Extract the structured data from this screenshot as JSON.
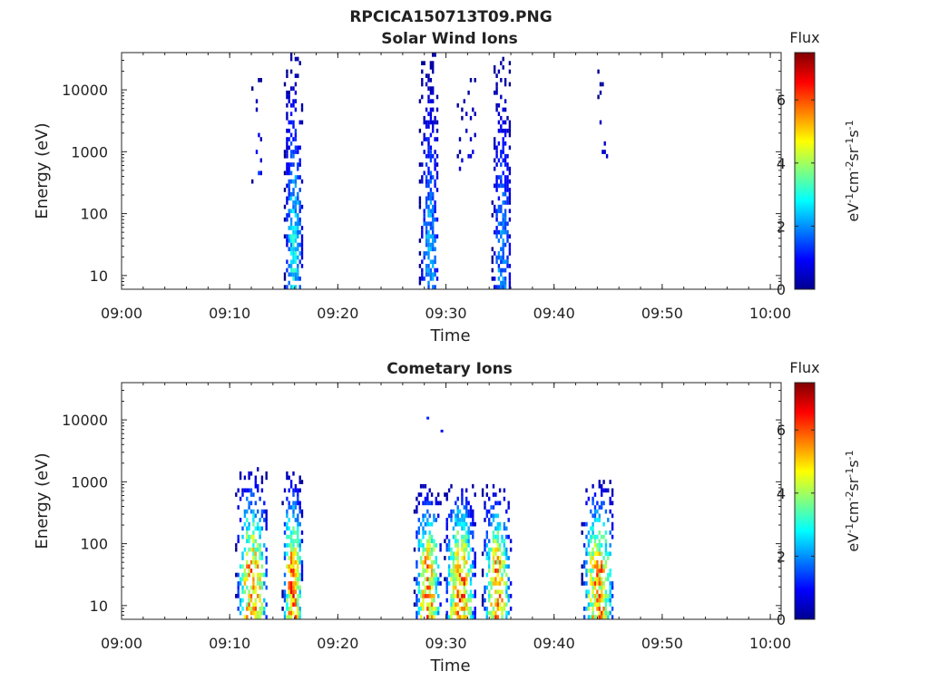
{
  "figure_title": "RPCICA150713T09.PNG",
  "chart_data": [
    {
      "type": "heatmap",
      "title": "Solar Wind Ions",
      "xlabel": "Time",
      "ylabel": "Energy (eV)",
      "xticks": [
        "09:00",
        "09:10",
        "09:20",
        "09:30",
        "09:40",
        "09:50",
        "10:00"
      ],
      "xlim": [
        "09:00",
        "10:01"
      ],
      "yscale": "log",
      "yticks": [
        10,
        100,
        1000,
        10000
      ],
      "ylim": [
        6,
        40000
      ],
      "colorbar": {
        "label": "Flux",
        "unit": "eV-1cm-2sr-1s-1",
        "ticks": [
          0,
          2,
          4,
          6
        ],
        "range": [
          0,
          7.5
        ]
      },
      "bursts": [
        {
          "start": "09:12",
          "end": "09:13",
          "emin": 280,
          "emax": 16000,
          "peak": 2.2,
          "density": 0.25
        },
        {
          "start": "09:15",
          "end": "09:16.7",
          "emin": 6,
          "emax": 36000,
          "peak": 3.3,
          "density": 0.75
        },
        {
          "start": "09:27.5",
          "end": "09:29.3",
          "emin": 6,
          "emax": 36000,
          "peak": 2.6,
          "density": 0.7
        },
        {
          "start": "09:31",
          "end": "09:33",
          "emin": 450,
          "emax": 18000,
          "peak": 2.0,
          "density": 0.2
        },
        {
          "start": "09:34.2",
          "end": "09:36",
          "emin": 6,
          "emax": 36000,
          "peak": 2.3,
          "density": 0.7
        },
        {
          "start": "09:44",
          "end": "09:45",
          "emin": 600,
          "emax": 20000,
          "peak": 1.8,
          "density": 0.3
        }
      ]
    },
    {
      "type": "heatmap",
      "title": "Cometary Ions",
      "xlabel": "Time",
      "ylabel": "Energy (eV)",
      "xticks": [
        "09:00",
        "09:10",
        "09:20",
        "09:30",
        "09:40",
        "09:50",
        "10:00"
      ],
      "xlim": [
        "09:00",
        "10:01"
      ],
      "yscale": "log",
      "yticks": [
        10,
        100,
        1000,
        10000
      ],
      "ylim": [
        6,
        40000
      ],
      "colorbar": {
        "label": "Flux",
        "unit": "eV-1cm-2sr-1s-1",
        "ticks": [
          0,
          2,
          4,
          6
        ],
        "range": [
          0,
          7.5
        ]
      },
      "bursts": [
        {
          "start": "09:10.5",
          "end": "09:13.5",
          "emin": 6,
          "emax": 1500,
          "peak": 6.6,
          "density": 0.7
        },
        {
          "start": "09:14.8",
          "end": "09:16.7",
          "emin": 6,
          "emax": 1300,
          "peak": 7.0,
          "density": 0.8
        },
        {
          "start": "09:27",
          "end": "09:29.5",
          "emin": 6,
          "emax": 800,
          "peak": 6.5,
          "density": 0.7
        },
        {
          "start": "09:29.8",
          "end": "09:32.7",
          "emin": 6,
          "emax": 900,
          "peak": 6.8,
          "density": 0.75
        },
        {
          "start": "09:33.3",
          "end": "09:36",
          "emin": 6,
          "emax": 900,
          "peak": 6.4,
          "density": 0.7
        },
        {
          "start": "09:42.5",
          "end": "09:45.5",
          "emin": 6,
          "emax": 1000,
          "peak": 6.6,
          "density": 0.7
        }
      ],
      "points": [
        {
          "time": "09:28.2",
          "energy": 10500,
          "flux": 1.2
        },
        {
          "time": "09:29.5",
          "energy": 6500,
          "flux": 1.0
        }
      ]
    }
  ]
}
